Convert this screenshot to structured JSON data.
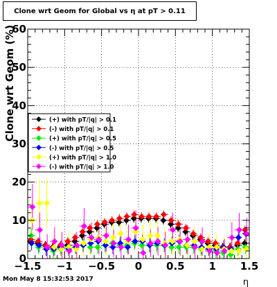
{
  "chart_data": {
    "type": "scatter",
    "title": "Clone wrt Geom for Global vs   η at pT > 0.11",
    "xlabel": "η",
    "ylabel": "Clone wrt Geom (%)",
    "xlim": [
      -1.5,
      1.5
    ],
    "ylim": [
      0,
      60
    ],
    "x_ticks": [
      "−1.5",
      "−1",
      "−0.5",
      "0",
      "0.5",
      "1",
      "1.5"
    ],
    "y_ticks": [
      "0",
      "10",
      "20",
      "30",
      "40",
      "50",
      "60"
    ],
    "grid": true,
    "legend_position": "middle-left",
    "series": [
      {
        "name": "(+) with pT/|q| > 0.1",
        "color": "#000000",
        "x": [
          -1.45,
          -1.35,
          -1.25,
          -1.15,
          -1.05,
          -0.95,
          -0.85,
          -0.75,
          -0.65,
          -0.55,
          -0.45,
          -0.35,
          -0.25,
          -0.15,
          -0.05,
          0.05,
          0.15,
          0.25,
          0.35,
          0.45,
          0.55,
          0.65,
          0.75,
          0.85,
          0.95,
          1.05,
          1.15,
          1.25,
          1.35,
          1.45
        ],
        "y": [
          4.5,
          4.0,
          3.5,
          3.0,
          3.0,
          3.5,
          4.5,
          6.0,
          7.0,
          8.0,
          9.0,
          9.5,
          9.5,
          10.0,
          10.5,
          10.5,
          10.5,
          10.5,
          10.0,
          9.0,
          8.0,
          7.0,
          6.0,
          5.0,
          4.0,
          3.5,
          3.0,
          3.0,
          3.5,
          4.0
        ]
      },
      {
        "name": "(-) with pT/|q| > 0.1",
        "color": "#ff0000",
        "x": [
          -1.45,
          -1.35,
          -1.25,
          -1.15,
          -1.05,
          -0.95,
          -0.85,
          -0.75,
          -0.65,
          -0.55,
          -0.45,
          -0.35,
          -0.25,
          -0.15,
          -0.05,
          0.05,
          0.15,
          0.25,
          0.35,
          0.45,
          0.55,
          0.65,
          0.75,
          0.85,
          0.95,
          1.05,
          1.15,
          1.25,
          1.35,
          1.45
        ],
        "y": [
          5.0,
          4.5,
          3.5,
          3.0,
          3.5,
          4.5,
          5.5,
          7.0,
          8.0,
          9.0,
          9.5,
          10.0,
          10.5,
          11.0,
          11.5,
          11.0,
          11.0,
          11.0,
          11.5,
          10.0,
          9.0,
          8.0,
          6.5,
          5.5,
          4.5,
          4.0,
          3.0,
          3.0,
          4.0,
          7.5
        ]
      },
      {
        "name": "(+) with pT/|q| > 0.5",
        "color": "#00ee00",
        "x": [
          -1.45,
          -1.35,
          -1.25,
          -1.15,
          -1.05,
          -0.95,
          -0.85,
          -0.75,
          -0.65,
          -0.55,
          -0.45,
          -0.35,
          -0.25,
          -0.15,
          -0.05,
          0.05,
          0.15,
          0.25,
          0.35,
          0.45,
          0.55,
          0.65,
          0.75,
          0.85,
          0.95,
          1.05,
          1.15,
          1.25,
          1.35,
          1.45
        ],
        "y": [
          6.0,
          3.0,
          2.5,
          2.0,
          2.5,
          3.0,
          3.0,
          3.5,
          3.0,
          3.0,
          3.5,
          4.0,
          3.5,
          3.5,
          4.0,
          3.5,
          3.5,
          3.5,
          3.5,
          3.0,
          3.0,
          3.0,
          3.0,
          2.5,
          2.5,
          2.0,
          1.5,
          1.0,
          2.5,
          3.0
        ]
      },
      {
        "name": "(-) with pT/|q| > 0.5",
        "color": "#0000ff",
        "x": [
          -1.45,
          -1.35,
          -1.25,
          -1.15,
          -1.05,
          -0.95,
          -0.85,
          -0.75,
          -0.65,
          -0.55,
          -0.45,
          -0.35,
          -0.25,
          -0.15,
          -0.05,
          0.05,
          0.15,
          0.25,
          0.35,
          0.45,
          0.55,
          0.65,
          0.75,
          0.85,
          0.95,
          1.05,
          1.15,
          1.25,
          1.35,
          1.45
        ],
        "y": [
          4.0,
          3.5,
          2.5,
          2.5,
          3.0,
          2.5,
          3.0,
          3.5,
          4.0,
          4.5,
          3.5,
          3.0,
          4.0,
          3.0,
          4.5,
          4.5,
          3.5,
          4.0,
          3.5,
          4.0,
          4.5,
          3.5,
          3.5,
          3.0,
          2.5,
          2.5,
          3.0,
          2.5,
          5.5,
          6.5
        ]
      },
      {
        "name": "(+) with pT/|q| > 1.0",
        "color": "#ffff00",
        "x": [
          -1.45,
          -1.35,
          -1.25,
          -1.15,
          -1.05,
          -0.95,
          -0.85,
          -0.75,
          -0.65,
          -0.55,
          -0.45,
          -0.35,
          -0.25,
          -0.15,
          -0.05,
          0.05,
          0.15,
          0.25,
          0.35,
          0.45,
          0.55,
          0.65,
          0.75,
          0.85,
          0.95,
          1.05,
          1.15,
          1.25,
          1.35,
          1.45
        ],
        "y": [
          10.0,
          14.5,
          14.5,
          3.0,
          2.5,
          3.0,
          2.5,
          4.0,
          5.0,
          5.5,
          4.5,
          5.5,
          6.5,
          4.5,
          7.0,
          5.0,
          6.0,
          6.0,
          4.0,
          4.5,
          5.0,
          3.5,
          4.5,
          2.5,
          3.0,
          3.0,
          2.5,
          2.0,
          2.0,
          2.5
        ]
      },
      {
        "name": "(-) with pT/|q| > 1.0",
        "color": "#ff00ff",
        "x": [
          -1.45,
          -1.35,
          -1.25,
          -1.15,
          -1.05,
          -0.95,
          -0.85,
          -0.75,
          -0.65,
          -0.55,
          -0.45,
          -0.35,
          -0.25,
          -0.15,
          -0.05,
          0.05,
          0.15,
          0.25,
          0.35,
          0.45,
          0.55,
          0.65,
          0.75,
          0.85,
          0.95,
          1.05,
          1.15,
          1.25,
          1.35,
          1.45
        ],
        "y": [
          13.5,
          7.5,
          3.0,
          4.5,
          3.5,
          2.0,
          3.5,
          8.5,
          5.5,
          5.0,
          6.0,
          4.0,
          3.0,
          5.0,
          8.0,
          1.5,
          4.0,
          4.5,
          3.5,
          7.5,
          4.5,
          5.0,
          3.0,
          4.5,
          2.0,
          1.5,
          2.0,
          5.5,
          7.5,
          6.5
        ]
      }
    ]
  },
  "footer": {
    "timestamp": "Mon May  8 15:32:53 2017",
    "eta_label": "η"
  }
}
